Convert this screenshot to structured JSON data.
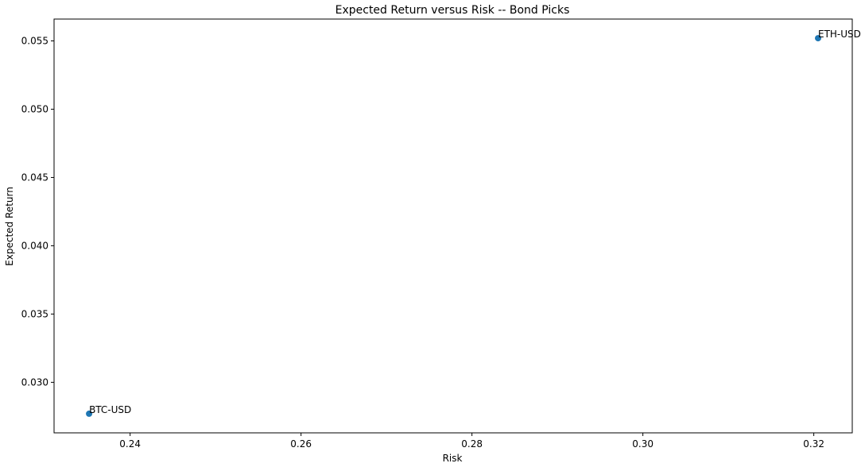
{
  "chart_data": {
    "type": "scatter",
    "title": "Expected Return versus Risk -- Bond Picks",
    "xlabel": "Risk",
    "ylabel": "Expected Return",
    "xlim": [
      0.2311,
      0.3245
    ],
    "ylim": [
      0.0263,
      0.0566
    ],
    "xticks": [
      0.24,
      0.26,
      0.28,
      0.3,
      0.32
    ],
    "xtick_labels": [
      "0.24",
      "0.26",
      "0.28",
      "0.30",
      "0.32"
    ],
    "yticks": [
      0.03,
      0.035,
      0.04,
      0.045,
      0.05,
      0.055
    ],
    "ytick_labels": [
      "0.030",
      "0.035",
      "0.040",
      "0.045",
      "0.050",
      "0.055"
    ],
    "grid": false,
    "point_color": "#1f77b4",
    "points": [
      {
        "label": "BTC-USD",
        "x": 0.2352,
        "y": 0.0277
      },
      {
        "label": "ETH-USD",
        "x": 0.3205,
        "y": 0.0552
      }
    ]
  }
}
